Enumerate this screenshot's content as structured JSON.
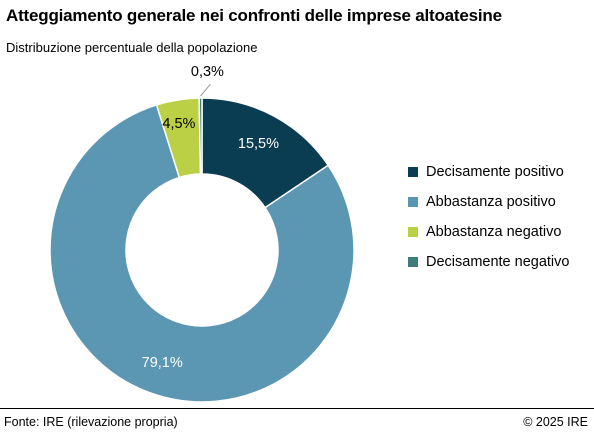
{
  "header": {
    "title": "Atteggiamento generale nei confronti delle imprese altoatesine",
    "subtitle": "Distribuzione percentuale della popolazione"
  },
  "footer": {
    "source": "Fonte: IRE (rilevazione propria)",
    "copyright": "© 2025 IRE"
  },
  "chart_data": {
    "type": "pie",
    "variant": "donut",
    "title": "Atteggiamento generale nei confronti delle imprese altoatesine",
    "subtitle": "Distribuzione percentuale della popolazione",
    "legend_position": "right",
    "series": [
      {
        "name": "Decisamente positivo",
        "value": 15.5,
        "label": "15,5%",
        "color": "#0b3d52",
        "label_color": "#ffffff"
      },
      {
        "name": "Abbastanza positivo",
        "value": 79.1,
        "label": "79,1%",
        "color": "#5b97b2",
        "label_color": "#ffffff"
      },
      {
        "name": "Abbastanza negativo",
        "value": 4.5,
        "label": "4,5%",
        "color": "#bcd045",
        "label_color": "#000000"
      },
      {
        "name": "Decisamente negativo",
        "value": 0.3,
        "label": "0,3%",
        "color": "#3f7d7a",
        "label_color": "#000000"
      }
    ]
  }
}
